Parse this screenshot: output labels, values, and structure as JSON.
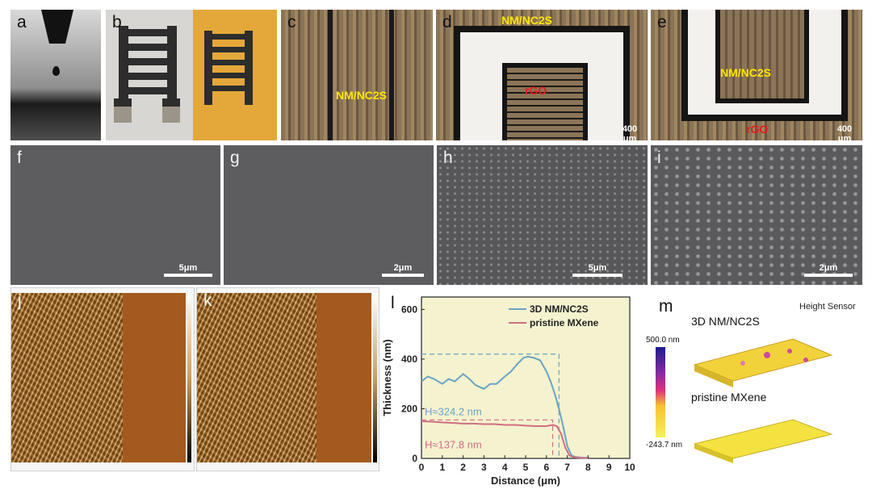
{
  "labels": {
    "a": "a",
    "b": "b",
    "c": "c",
    "d": "d",
    "e": "e",
    "f": "f",
    "g": "g",
    "h": "h",
    "i": "i",
    "j": "j",
    "k": "k",
    "l": "l",
    "m": "m"
  },
  "panel_text": {
    "c_material": "NM/NC2S",
    "d_material": "NM/NC2S",
    "d_rgo": "rGO",
    "d_scale": "400 μm",
    "e_material": "NM/NC2S",
    "e_rgo": "rGO",
    "e_scale": "400 μm",
    "f_scale": "5μm",
    "g_scale": "2μm",
    "h_scale": "5μm",
    "i_scale": "2μm"
  },
  "panel_m": {
    "title": "Height Sensor",
    "top_label": "3D NM/NC2S",
    "bottom_label": "pristine MXene",
    "colorbar_max": "500.0 nm",
    "colorbar_min": "-243.7 nm"
  },
  "chart_data": {
    "type": "line",
    "xlabel": "Distance (μm)",
    "ylabel": "Thickness (nm)",
    "xlim": [
      0,
      10
    ],
    "ylim": [
      0,
      650
    ],
    "xticks": [
      0,
      1,
      2,
      3,
      4,
      5,
      6,
      7,
      8,
      9,
      10
    ],
    "yticks": [
      0,
      200,
      400,
      600
    ],
    "legend_position": "top-right",
    "series": [
      {
        "name": "3D NM/NC2S",
        "color": "#6aa4c4",
        "x": [
          0,
          0.3,
          0.6,
          1,
          1.3,
          1.6,
          2,
          2.3,
          2.6,
          3,
          3.3,
          3.6,
          4,
          4.3,
          4.6,
          4.9,
          5.1,
          5.4,
          5.7,
          6,
          6.2,
          6.4,
          6.6,
          6.8,
          7,
          7.2,
          7.4,
          7.6,
          7.8,
          8
        ],
        "y": [
          310,
          330,
          320,
          300,
          320,
          310,
          340,
          320,
          295,
          280,
          300,
          300,
          330,
          350,
          380,
          405,
          410,
          405,
          395,
          350,
          310,
          260,
          200,
          130,
          50,
          12,
          6,
          4,
          3,
          3
        ]
      },
      {
        "name": "pristine MXene",
        "color": "#cf6e84",
        "x": [
          0,
          0.5,
          1,
          1.5,
          2,
          2.5,
          3,
          3.5,
          4,
          4.5,
          5,
          5.5,
          6,
          6.3,
          6.5,
          6.7,
          6.9,
          7.1,
          7.3,
          7.5,
          7.7,
          8
        ],
        "y": [
          150,
          148,
          145,
          143,
          140,
          140,
          138,
          138,
          135,
          135,
          132,
          130,
          130,
          135,
          130,
          100,
          45,
          12,
          5,
          3,
          2,
          2
        ]
      }
    ],
    "annotations": [
      {
        "text": "H≈324.2 nm",
        "color": "#6aa4c4"
      },
      {
        "text": "H≈137.8 nm",
        "color": "#cf6e84"
      }
    ],
    "reference_lines": {
      "y_blue": 420,
      "y_red": 155,
      "x_blue": 6.6,
      "x_red": 6.3
    }
  }
}
